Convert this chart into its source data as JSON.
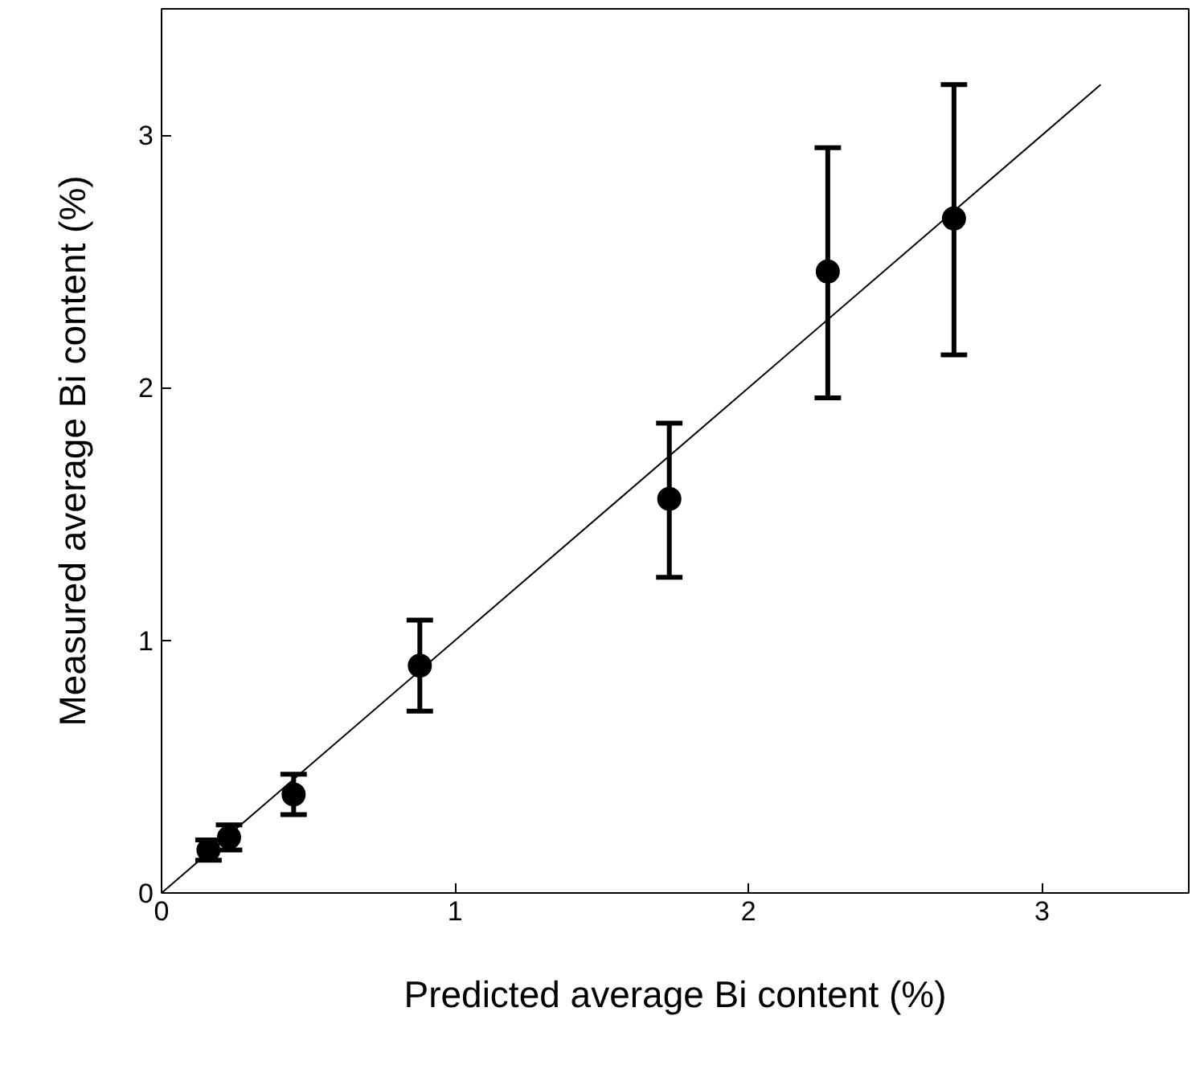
{
  "chart_data": {
    "type": "scatter",
    "xlabel": "Predicted average Bi content (%)",
    "ylabel": "Measured average Bi content (%)",
    "xlim": [
      0,
      3.5
    ],
    "ylim": [
      0,
      3.5
    ],
    "xticks": [
      0,
      1,
      2,
      3
    ],
    "yticks": [
      0,
      1,
      2,
      3
    ],
    "grid": false,
    "series": [
      {
        "marker": "circle",
        "color": "#000000",
        "x": [
          0.16,
          0.23,
          0.45,
          0.88,
          1.73,
          2.27,
          2.7
        ],
        "values": [
          0.17,
          0.22,
          0.39,
          0.9,
          1.56,
          2.46,
          2.67
        ],
        "errors": [
          0.04,
          0.05,
          0.08,
          [
            0.72,
            1.08
          ],
          [
            1.25,
            1.86
          ],
          [
            1.96,
            2.95
          ],
          [
            2.13,
            3.2
          ]
        ]
      },
      {
        "type": "line",
        "color": "#000000",
        "x": [
          0,
          3.2
        ],
        "values": [
          0,
          3.2
        ],
        "line_style": "solid"
      }
    ]
  }
}
